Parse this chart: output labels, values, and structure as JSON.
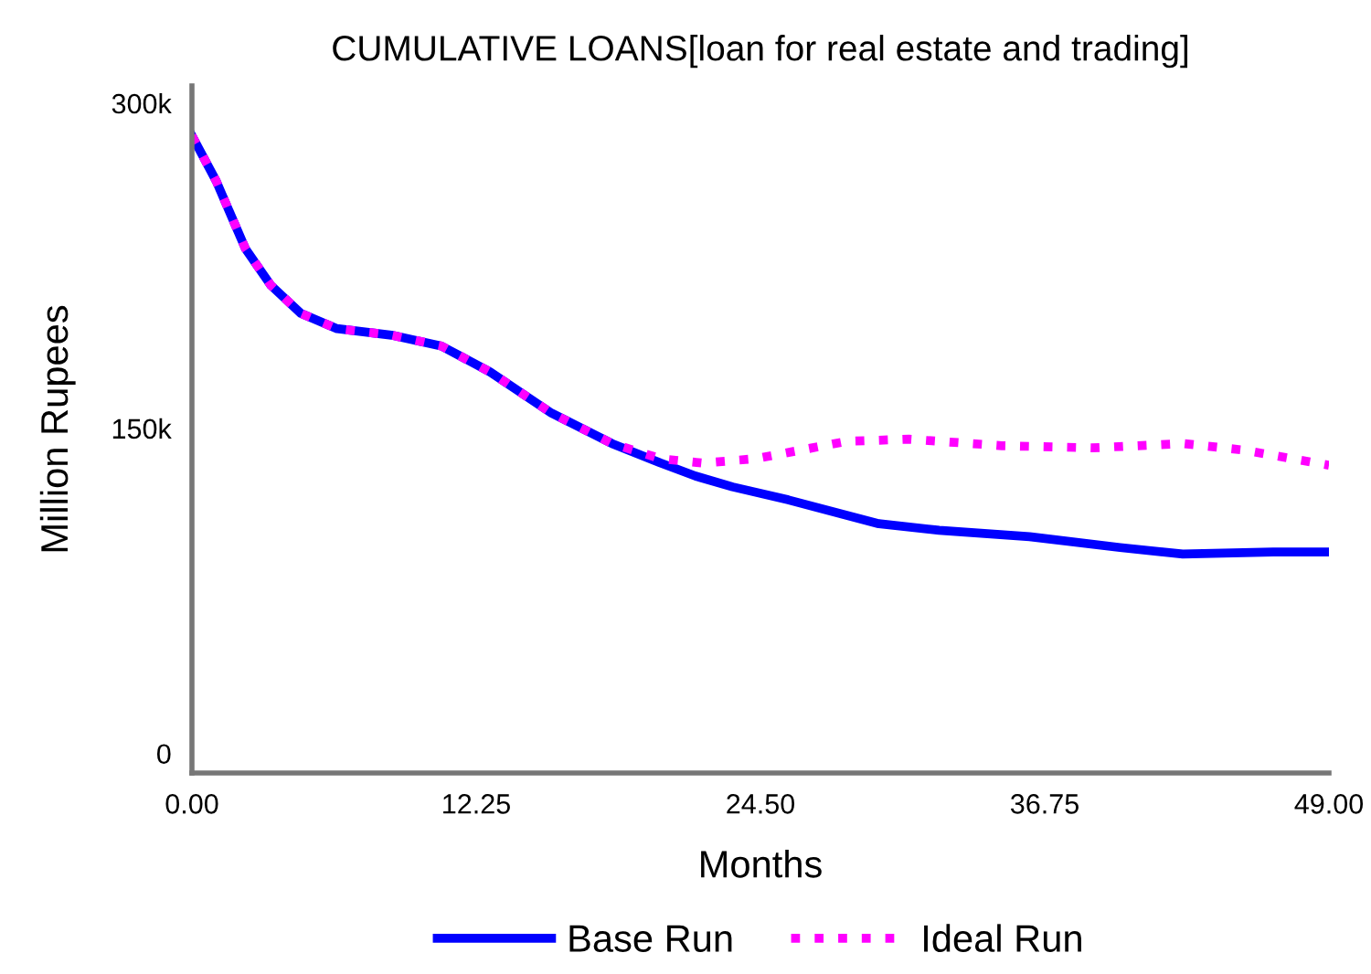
{
  "chart_data": {
    "type": "line",
    "title": "CUMULATIVE LOANS[loan for real estate and trading]",
    "xlabel": "Months",
    "ylabel": "Million Rupees",
    "xlim": [
      0,
      49
    ],
    "xticks": [
      {
        "value": 0,
        "label": "0.00"
      },
      {
        "value": 12.25,
        "label": "12.25"
      },
      {
        "value": 24.5,
        "label": "24.50"
      },
      {
        "value": 36.75,
        "label": "36.75"
      },
      {
        "value": 49,
        "label": "49.00"
      }
    ],
    "ylim": [
      -9000,
      308000
    ],
    "yticks": [
      0,
      {
        "value": 150000,
        "label": "150k"
      },
      {
        "value": 300000,
        "label": "300k"
      }
    ],
    "grid": false,
    "legend": "bottom",
    "marker": "none",
    "series": [
      {
        "name": "Base Run",
        "color": "#0000ff",
        "line_style": "solid",
        "x": [
          0,
          1.05,
          2.3,
          3.4,
          4.7,
          6.25,
          8.6,
          10.75,
          12.85,
          15.5,
          18.1,
          20.2,
          21.7,
          23.3,
          25.7,
          29.6,
          32.2,
          36.1,
          40,
          42.7,
          46.6,
          49
        ],
        "values": [
          285000,
          264000,
          233000,
          216000,
          203000,
          196000,
          193000,
          188000,
          176000,
          157000,
          143000,
          134000,
          128000,
          123000,
          117000,
          106000,
          103000,
          100000,
          95000,
          92000,
          93000,
          93000
        ]
      },
      {
        "name": "Ideal Run",
        "color": "#ff00ff",
        "line_style": "dotted",
        "x": [
          0,
          1.05,
          2.3,
          3.4,
          4.7,
          6.25,
          8.6,
          10.75,
          12.85,
          15.5,
          18.1,
          20.2,
          22,
          24.3,
          28.2,
          30.9,
          34.9,
          38.8,
          42.7,
          45.3,
          49
        ],
        "values": [
          285000,
          264000,
          233000,
          216000,
          203000,
          196000,
          193000,
          188000,
          176000,
          157000,
          143000,
          136000,
          134000,
          136000,
          144000,
          145000,
          142000,
          141000,
          143000,
          140000,
          133000
        ]
      }
    ]
  }
}
